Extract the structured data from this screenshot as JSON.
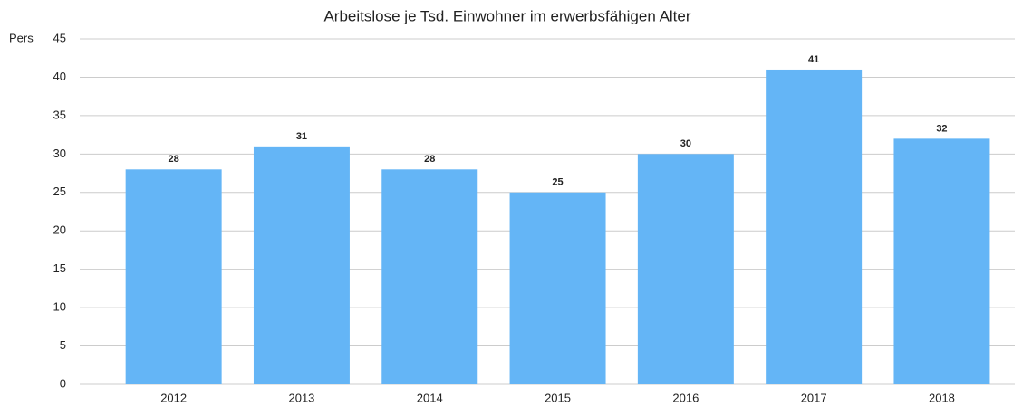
{
  "chart_data": {
    "type": "bar",
    "title": "Arbeitslose je Tsd. Einwohner im erwerbsfähigen Alter",
    "y_label": "Pers",
    "categories": [
      "2012",
      "2013",
      "2014",
      "2015",
      "2016",
      "2017",
      "2018"
    ],
    "values": [
      28,
      31,
      28,
      25,
      30,
      41,
      32
    ],
    "color": "#64b5f6",
    "ylim": [
      0,
      45
    ],
    "yticks": [
      0,
      5,
      10,
      15,
      20,
      25,
      30,
      35,
      40,
      45
    ],
    "grid": true
  }
}
